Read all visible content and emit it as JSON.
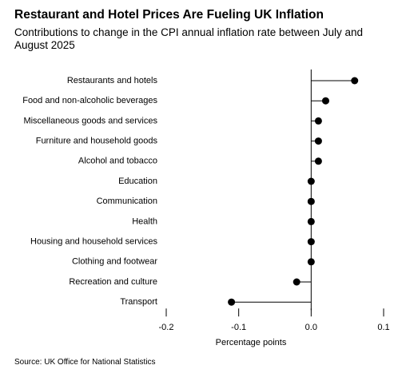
{
  "chart_data": {
    "type": "lollipop",
    "title": "Restaurant and Hotel Prices Are Fueling UK Inflation",
    "subtitle": "Contributions to change in the CPI annual inflation rate between July and August 2025",
    "source": "Source: UK Office for National Statistics",
    "x_label": "Percentage points",
    "categories": [
      "Restaurants and hotels",
      "Food and non-alcoholic beverages",
      "Miscellaneous goods and services",
      "Furniture and household goods",
      "Alcohol and tobacco",
      "Education",
      "Communication",
      "Health",
      "Housing and household services",
      "Clothing and footwear",
      "Recreation and culture",
      "Transport"
    ],
    "values": [
      0.06,
      0.02,
      0.01,
      0.01,
      0.01,
      0,
      0,
      0,
      0,
      0,
      -0.02,
      -0.11
    ],
    "color": "#000000",
    "xlim": [
      -0.2,
      0.1
    ],
    "xticks": [
      -0.2,
      -0.1,
      {
        "value": 0,
        "label": "0.0"
      },
      0.1
    ]
  }
}
